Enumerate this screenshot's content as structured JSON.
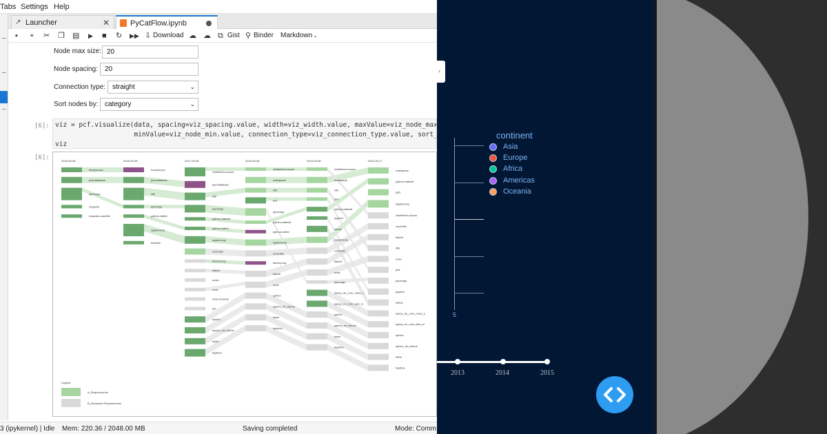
{
  "menubar": {
    "items": [
      "Tabs",
      "Settings",
      "Help"
    ]
  },
  "tabs": [
    {
      "label": "Launcher",
      "active": false
    },
    {
      "label": "PyCatFlow.ipynb",
      "active": true
    }
  ],
  "toolbar": {
    "download_label": "Download",
    "gist_label": "Gist",
    "binder_label": "Binder",
    "cell_type": "Markdown"
  },
  "widgets": {
    "node_max_size": {
      "label": "Node max size:",
      "value": "20"
    },
    "node_spacing": {
      "label": "Node spacing:",
      "value": "20"
    },
    "connection_type": {
      "label": "Connection type:",
      "value": "straight"
    },
    "sort_nodes_by": {
      "label": "Sort nodes by:",
      "value": "category"
    }
  },
  "code_cell": {
    "prompt": "[6]:",
    "lines": [
      "viz = pcf.visualize(data, spacing=viz_spacing.value, width=viz_width.value, maxValue=viz_node_max.val",
      "                    minValue=viz_node_min.value, connection_type=viz_connection_type.value, sort_by=v",
      "viz"
    ]
  },
  "output_cell": {
    "prompt": "[6]:",
    "columns": [
      {
        "date": "2015-09-08",
        "labels": [
          "fuzzywuzzy",
          "jsondatabase",
          "pymongo",
          "requests",
          "requests-oauthlib"
        ]
      },
      {
        "date": "2016-09-08",
        "labels": [
          "fuzzywuzzy",
          "jsondatabase",
          "nltk",
          "pymongo",
          "python-twitter",
          "sqlalchemy",
          "textblob"
        ]
      },
      {
        "date": "2017-09-08",
        "labels": [
          "chatterbot-corpus",
          "jsondatabase",
          "nltk",
          "pymongo",
          "python-dateutil",
          "python-twitter",
          "sqlalchemy",
          "coveralls",
          "factory-boy",
          "flake8",
          "mock",
          "nose",
          "nose-exclude",
          "pbr",
          "sphinx",
          "sphinx_rtd_theme",
          "twine",
          "twython"
        ]
      },
      {
        "date": "2018-09-08",
        "labels": [
          "chatterbot-corpus",
          "mathparse",
          "nltk",
          "pint",
          "pymongo",
          "python-dateutil",
          "python-twitter",
          "sqlalchemy",
          "coveralls",
          "factory-boy",
          "flake8",
          "nose",
          "sphinx",
          "sphinx_rtd_theme",
          "twine",
          "twython"
        ]
      },
      {
        "date": "2019-09-08",
        "labels": [
          "chatterbot-corpus",
          "mathparse",
          "nltk",
          "pint",
          "python-dateutil",
          "pyyaml",
          "spacy",
          "sqlalchemy",
          "coveralls",
          "flake8",
          "nose",
          "pymongo",
          "spacy_de_core_news_s",
          "spacy_en_core_web_sr",
          "sphinx",
          "sphinx_rtd_theme",
          "twine",
          "twython"
        ]
      },
      {
        "date": "2021-05-17",
        "labels": [
          "mathparse",
          "python-dateutil",
          "pytz",
          "sqlalchemy",
          "chatterbot-corpus",
          "coveralls",
          "flake8",
          "nltk",
          "nose",
          "pint",
          "pymongo",
          "pyyaml",
          "spacy",
          "spacy_de_core_news_s",
          "spacy_en_core_web_sr",
          "sphinx",
          "sphinx_rtd_theme",
          "twine",
          "twython"
        ]
      }
    ],
    "legend_title": "Legend",
    "legend_items": [
      "A_Requirements",
      "B_Developer Requirements"
    ],
    "colors": {
      "green_dark": "#6aa86e",
      "green_light": "#a5d6a0",
      "purple": "#8e5288",
      "gray": "#d9d9d9"
    }
  },
  "statusbar": {
    "kernel": "3 (ipykernel) | Idle",
    "memory": "Mem: 220.36 / 2048.00 MB",
    "saving": "Saving completed",
    "mode": "Mode: Comm"
  },
  "plot": {
    "legend_title": "continent",
    "legend_items": [
      {
        "name": "Asia",
        "color": "#636efa"
      },
      {
        "name": "Europe",
        "color": "#ef553b"
      },
      {
        "name": "Africa",
        "color": "#00cc96"
      },
      {
        "name": "Americas",
        "color": "#ab63fa"
      },
      {
        "name": "Oceania",
        "color": "#ffa15a"
      }
    ],
    "y_tick": "5",
    "slider_labels": [
      "2013",
      "2014",
      "2015"
    ]
  }
}
